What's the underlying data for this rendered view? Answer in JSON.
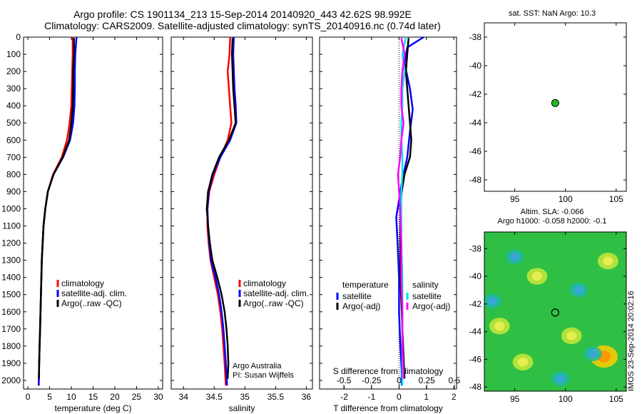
{
  "header": {
    "title_line1": "Argo profile: CS 1901134_213 15-Sep-2014 20140920_443 42.62S 98.992E",
    "title_line2": "Climatology: CARS2009. Satellite-adjusted climatology: synTS_20140916.nc (0.74d later)"
  },
  "watermark": "IMOS 23-Sep-2014 20:02:16",
  "colors": {
    "clim": "#ff0000",
    "sat": "#0000ff",
    "argo": "#000000",
    "sal_sat": "#00e5ee",
    "sal_argo": "#ff00ff",
    "float": "#22bb22"
  },
  "chart_data": [
    {
      "type": "line",
      "id": "temperature",
      "xlabel": "temperature (deg C)",
      "xlim": [
        -1,
        31
      ],
      "ylim": [
        2050,
        0
      ],
      "x_ticks": [
        "0",
        "5",
        "10",
        "15",
        "20",
        "25",
        "30"
      ],
      "y_ticks": [
        "0",
        "100",
        "200",
        "300",
        "400",
        "500",
        "600",
        "700",
        "800",
        "900",
        "1000",
        "1100",
        "1200",
        "1300",
        "1400",
        "1500",
        "1600",
        "1700",
        "1800",
        "1900",
        "2000"
      ],
      "legend": [
        "climatology",
        "satellite-adj. clim.",
        "Argo(..raw -QC)"
      ],
      "series": [
        {
          "name": "climatology",
          "color_key": "clim",
          "points": [
            [
              10.3,
              0
            ],
            [
              10.3,
              100
            ],
            [
              10.2,
              200
            ],
            [
              10.1,
              300
            ],
            [
              10.0,
              400
            ],
            [
              9.6,
              500
            ],
            [
              9.0,
              600
            ],
            [
              7.8,
              700
            ],
            [
              5.8,
              800
            ],
            [
              4.6,
              900
            ],
            [
              4.0,
              1000
            ],
            [
              3.6,
              1100
            ],
            [
              3.4,
              1200
            ],
            [
              3.2,
              1300
            ],
            [
              3.1,
              1400
            ],
            [
              3.0,
              1500
            ],
            [
              2.9,
              1600
            ],
            [
              2.8,
              1700
            ],
            [
              2.7,
              1800
            ],
            [
              2.6,
              1900
            ],
            [
              2.5,
              2030
            ]
          ]
        },
        {
          "name": "satellite-adj. clim.",
          "color_key": "sat",
          "points": [
            [
              11.2,
              0
            ],
            [
              10.9,
              100
            ],
            [
              10.8,
              200
            ],
            [
              10.8,
              300
            ],
            [
              10.7,
              400
            ],
            [
              10.4,
              500
            ],
            [
              9.7,
              600
            ],
            [
              8.1,
              700
            ],
            [
              5.9,
              800
            ],
            [
              4.6,
              900
            ],
            [
              4.0,
              1000
            ],
            [
              3.6,
              1100
            ],
            [
              3.4,
              1200
            ],
            [
              3.2,
              1300
            ],
            [
              3.1,
              1400
            ],
            [
              3.0,
              1500
            ],
            [
              2.9,
              1600
            ],
            [
              2.8,
              1700
            ],
            [
              2.7,
              1800
            ],
            [
              2.6,
              1900
            ],
            [
              2.5,
              2030
            ]
          ]
        },
        {
          "name": "Argo(..raw -QC)",
          "color_key": "argo",
          "points": [
            [
              10.6,
              5
            ],
            [
              10.6,
              100
            ],
            [
              10.4,
              200
            ],
            [
              10.4,
              300
            ],
            [
              10.3,
              400
            ],
            [
              10.0,
              500
            ],
            [
              9.5,
              600
            ],
            [
              8.0,
              700
            ],
            [
              5.9,
              800
            ],
            [
              4.6,
              900
            ],
            [
              4.0,
              1000
            ],
            [
              3.6,
              1100
            ],
            [
              3.4,
              1200
            ],
            [
              3.2,
              1300
            ],
            [
              3.1,
              1400
            ],
            [
              3.0,
              1500
            ],
            [
              2.9,
              1600
            ],
            [
              2.8,
              1700
            ],
            [
              2.7,
              1800
            ],
            [
              2.6,
              1900
            ],
            [
              2.55,
              1990
            ]
          ]
        }
      ]
    },
    {
      "type": "line",
      "id": "salinity",
      "xlabel": "salinity",
      "xlim": [
        33.8,
        36.1
      ],
      "ylim": [
        2050,
        0
      ],
      "x_ticks": [
        "34",
        "34.5",
        "35",
        "35.5",
        "36"
      ],
      "legend": [
        "climatology",
        "satellite-adj. clim.",
        "Argo(..raw -QC)"
      ],
      "annotation": [
        "Argo Australia",
        "PI: Susan Wijffels"
      ],
      "series": [
        {
          "name": "climatology",
          "color_key": "clim",
          "points": [
            [
              34.76,
              0
            ],
            [
              34.75,
              100
            ],
            [
              34.72,
              200
            ],
            [
              34.74,
              300
            ],
            [
              34.76,
              400
            ],
            [
              34.78,
              500
            ],
            [
              34.72,
              600
            ],
            [
              34.6,
              700
            ],
            [
              34.5,
              800
            ],
            [
              34.42,
              900
            ],
            [
              34.39,
              1000
            ],
            [
              34.39,
              1100
            ],
            [
              34.41,
              1200
            ],
            [
              34.44,
              1300
            ],
            [
              34.5,
              1400
            ],
            [
              34.56,
              1500
            ],
            [
              34.6,
              1600
            ],
            [
              34.63,
              1700
            ],
            [
              34.65,
              1800
            ],
            [
              34.67,
              1900
            ],
            [
              34.69,
              2030
            ]
          ]
        },
        {
          "name": "satellite-adj. clim.",
          "color_key": "sat",
          "points": [
            [
              34.82,
              0
            ],
            [
              34.81,
              100
            ],
            [
              34.82,
              200
            ],
            [
              34.83,
              300
            ],
            [
              34.85,
              400
            ],
            [
              34.86,
              500
            ],
            [
              34.76,
              600
            ],
            [
              34.6,
              700
            ],
            [
              34.48,
              800
            ],
            [
              34.41,
              900
            ],
            [
              34.39,
              1000
            ],
            [
              34.4,
              1100
            ],
            [
              34.42,
              1200
            ],
            [
              34.45,
              1300
            ],
            [
              34.52,
              1400
            ],
            [
              34.58,
              1500
            ],
            [
              34.62,
              1600
            ],
            [
              34.65,
              1700
            ],
            [
              34.67,
              1800
            ],
            [
              34.69,
              1900
            ],
            [
              34.71,
              2030
            ]
          ]
        },
        {
          "name": "Argo(..raw -QC)",
          "color_key": "argo",
          "points": [
            [
              34.8,
              5
            ],
            [
              34.79,
              100
            ],
            [
              34.8,
              200
            ],
            [
              34.81,
              300
            ],
            [
              34.83,
              400
            ],
            [
              34.85,
              500
            ],
            [
              34.74,
              600
            ],
            [
              34.58,
              700
            ],
            [
              34.47,
              800
            ],
            [
              34.4,
              900
            ],
            [
              34.38,
              1000
            ],
            [
              34.4,
              1100
            ],
            [
              34.43,
              1200
            ],
            [
              34.47,
              1300
            ],
            [
              34.55,
              1400
            ],
            [
              34.62,
              1500
            ],
            [
              34.67,
              1600
            ],
            [
              34.7,
              1700
            ],
            [
              34.72,
              1800
            ],
            [
              34.73,
              1900
            ],
            [
              34.72,
              1990
            ]
          ]
        }
      ]
    },
    {
      "type": "line",
      "id": "differences",
      "xlabel": "T difference from climatology",
      "xlabel_top": "S difference from climatology",
      "xlim": [
        -2.9,
        2.1
      ],
      "xlim_top": [
        -0.72,
        0.52
      ],
      "ylim": [
        2050,
        0
      ],
      "x_ticks": [
        "-2",
        "-1",
        "0",
        "1",
        "2"
      ],
      "x_ticks_top": [
        "-0.5",
        "-0.25",
        "0",
        "0.25",
        "0.5"
      ],
      "legend_temperature": {
        "heading": "temperature",
        "items": [
          "satellite",
          "Argo(-adj)"
        ]
      },
      "legend_salinity": {
        "heading": "salinity",
        "items": [
          "satellite",
          "Argo(-adj)"
        ]
      },
      "series": [
        {
          "name": "satellite",
          "group": "temperature",
          "color_key": "sat",
          "points": [
            [
              0.9,
              0
            ],
            [
              0.3,
              60
            ],
            [
              0.2,
              150
            ],
            [
              0.4,
              300
            ],
            [
              0.5,
              420
            ],
            [
              0.4,
              550
            ],
            [
              0.3,
              700
            ],
            [
              0.1,
              850
            ],
            [
              0.0,
              950
            ],
            [
              -0.1,
              1050
            ],
            [
              -0.05,
              1200
            ],
            [
              0.0,
              1400
            ],
            [
              0.0,
              1600
            ],
            [
              0.05,
              1800
            ],
            [
              0.1,
              1950
            ],
            [
              0.1,
              2030
            ]
          ]
        },
        {
          "name": "Argo(-adj)",
          "group": "temperature",
          "color_key": "argo",
          "points": [
            [
              0.35,
              5
            ],
            [
              0.3,
              100
            ],
            [
              0.25,
              200
            ],
            [
              0.3,
              300
            ],
            [
              0.35,
              400
            ],
            [
              0.4,
              500
            ],
            [
              0.45,
              600
            ],
            [
              0.4,
              700
            ],
            [
              0.2,
              800
            ],
            [
              0.1,
              900
            ],
            [
              0.05,
              1000
            ],
            [
              0.05,
              1100
            ],
            [
              0.05,
              1200
            ],
            [
              0.05,
              1400
            ],
            [
              0.1,
              1600
            ],
            [
              0.15,
              1800
            ],
            [
              0.2,
              1990
            ]
          ]
        },
        {
          "name": "satellite",
          "group": "salinity",
          "color_key": "sal_sat",
          "points": [
            [
              0.06,
              0
            ],
            [
              0.03,
              100
            ],
            [
              0.05,
              200
            ],
            [
              0.03,
              300
            ],
            [
              0.03,
              400
            ],
            [
              0.02,
              500
            ],
            [
              0.02,
              600
            ],
            [
              0.03,
              700
            ],
            [
              0.03,
              800
            ],
            [
              0.02,
              900
            ],
            [
              0.02,
              1000
            ],
            [
              0.02,
              1200
            ],
            [
              0.03,
              1400
            ],
            [
              0.03,
              1600
            ],
            [
              0.03,
              1800
            ],
            [
              0.03,
              2030
            ]
          ]
        },
        {
          "name": "Argo(-adj)",
          "group": "salinity",
          "color_key": "sal_argo",
          "points": [
            [
              0.02,
              5
            ],
            [
              0.05,
              100
            ],
            [
              0.03,
              200
            ],
            [
              0.02,
              300
            ],
            [
              0.02,
              400
            ],
            [
              0.04,
              500
            ],
            [
              0.02,
              600
            ],
            [
              0.01,
              700
            ],
            [
              -0.01,
              800
            ],
            [
              0.0,
              900
            ],
            [
              0.01,
              1000
            ],
            [
              0.02,
              1200
            ],
            [
              0.02,
              1400
            ],
            [
              0.03,
              1600
            ],
            [
              0.03,
              1800
            ],
            [
              0.04,
              1990
            ]
          ]
        }
      ]
    },
    {
      "type": "scatter",
      "id": "sst_map",
      "title": "sat. SST: NaN Argo: 10.3",
      "xlim": [
        92,
        106
      ],
      "ylim": [
        -48.8,
        -37
      ],
      "x_ticks": [
        "95",
        "100",
        "105"
      ],
      "y_ticks": [
        "-38",
        "-40",
        "-42",
        "-44",
        "-46",
        "-48"
      ],
      "points": [
        {
          "lon": 98.99,
          "lat": -42.62
        }
      ]
    },
    {
      "type": "heatmap",
      "id": "sla_map",
      "title_line1": "Altim. SLA: -0.066",
      "title_line2": "Argo h1000: -0.058 h2000: -0.1",
      "xlim": [
        92,
        106
      ],
      "ylim": [
        -48.3,
        -36.8
      ],
      "x_ticks": [
        "95",
        "100",
        "105"
      ],
      "y_ticks": [
        "-38",
        "-40",
        "-42",
        "-44",
        "-46",
        "-48"
      ],
      "points": [
        {
          "lon": 98.99,
          "lat": -42.62
        }
      ],
      "blobs": [
        {
          "lon": 103.8,
          "lat": -45.8,
          "level": 2
        },
        {
          "lon": 97.2,
          "lat": -40.0,
          "level": 1
        },
        {
          "lon": 104.2,
          "lat": -38.9,
          "level": 1
        },
        {
          "lon": 93.5,
          "lat": -43.6,
          "level": 1
        },
        {
          "lon": 100.6,
          "lat": -44.3,
          "level": 1
        },
        {
          "lon": 95.8,
          "lat": -46.2,
          "level": 1
        },
        {
          "lon": 101.3,
          "lat": -41.0,
          "level": -1
        },
        {
          "lon": 102.7,
          "lat": -45.6,
          "level": -1
        },
        {
          "lon": 95.0,
          "lat": -38.6,
          "level": -1
        },
        {
          "lon": 99.5,
          "lat": -47.4,
          "level": -1
        },
        {
          "lon": 92.8,
          "lat": -41.8,
          "level": -1
        }
      ]
    }
  ]
}
